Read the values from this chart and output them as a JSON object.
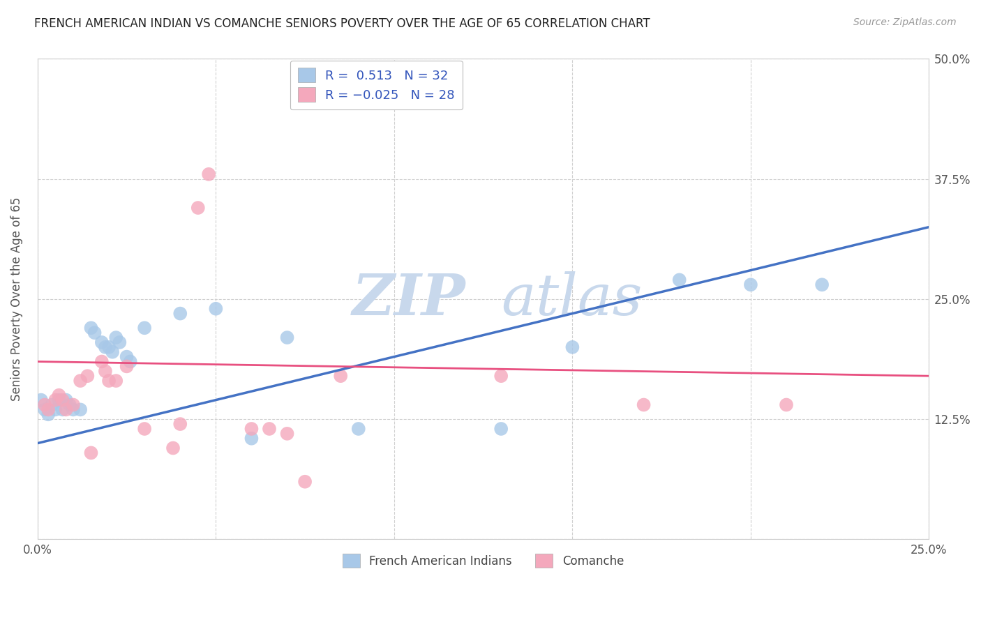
{
  "title": "FRENCH AMERICAN INDIAN VS COMANCHE SENIORS POVERTY OVER THE AGE OF 65 CORRELATION CHART",
  "source": "Source: ZipAtlas.com",
  "ylabel": "Seniors Poverty Over the Age of 65",
  "xlabel": "",
  "legend_label1": "French American Indians",
  "legend_label2": "Comanche",
  "R1": 0.513,
  "N1": 32,
  "R2": -0.025,
  "N2": 28,
  "color1": "#a8c8e8",
  "color2": "#f4a8bc",
  "line_color1": "#4472c4",
  "line_color2": "#e85080",
  "xlim": [
    0.0,
    0.25
  ],
  "ylim": [
    0.0,
    0.5
  ],
  "xticks": [
    0.0,
    0.05,
    0.1,
    0.15,
    0.2,
    0.25
  ],
  "yticks": [
    0.0,
    0.125,
    0.25,
    0.375,
    0.5
  ],
  "xtick_labels": [
    "0.0%",
    "",
    "",
    "",
    "",
    "25.0%"
  ],
  "ytick_labels_right": [
    "",
    "12.5%",
    "25.0%",
    "37.5%",
    "50.0%"
  ],
  "blue_points": [
    [
      0.001,
      0.145
    ],
    [
      0.002,
      0.135
    ],
    [
      0.003,
      0.13
    ],
    [
      0.004,
      0.14
    ],
    [
      0.005,
      0.135
    ],
    [
      0.006,
      0.145
    ],
    [
      0.007,
      0.135
    ],
    [
      0.008,
      0.145
    ],
    [
      0.009,
      0.14
    ],
    [
      0.01,
      0.135
    ],
    [
      0.012,
      0.135
    ],
    [
      0.015,
      0.22
    ],
    [
      0.016,
      0.215
    ],
    [
      0.018,
      0.205
    ],
    [
      0.019,
      0.2
    ],
    [
      0.02,
      0.2
    ],
    [
      0.021,
      0.195
    ],
    [
      0.022,
      0.21
    ],
    [
      0.023,
      0.205
    ],
    [
      0.025,
      0.19
    ],
    [
      0.026,
      0.185
    ],
    [
      0.03,
      0.22
    ],
    [
      0.04,
      0.235
    ],
    [
      0.05,
      0.24
    ],
    [
      0.06,
      0.105
    ],
    [
      0.07,
      0.21
    ],
    [
      0.09,
      0.115
    ],
    [
      0.13,
      0.115
    ],
    [
      0.15,
      0.2
    ],
    [
      0.18,
      0.27
    ],
    [
      0.2,
      0.265
    ],
    [
      0.22,
      0.265
    ]
  ],
  "pink_points": [
    [
      0.002,
      0.14
    ],
    [
      0.003,
      0.135
    ],
    [
      0.005,
      0.145
    ],
    [
      0.006,
      0.15
    ],
    [
      0.007,
      0.145
    ],
    [
      0.008,
      0.135
    ],
    [
      0.01,
      0.14
    ],
    [
      0.012,
      0.165
    ],
    [
      0.014,
      0.17
    ],
    [
      0.015,
      0.09
    ],
    [
      0.018,
      0.185
    ],
    [
      0.019,
      0.175
    ],
    [
      0.02,
      0.165
    ],
    [
      0.022,
      0.165
    ],
    [
      0.025,
      0.18
    ],
    [
      0.03,
      0.115
    ],
    [
      0.038,
      0.095
    ],
    [
      0.04,
      0.12
    ],
    [
      0.045,
      0.345
    ],
    [
      0.048,
      0.38
    ],
    [
      0.06,
      0.115
    ],
    [
      0.065,
      0.115
    ],
    [
      0.07,
      0.11
    ],
    [
      0.075,
      0.06
    ],
    [
      0.085,
      0.17
    ],
    [
      0.13,
      0.17
    ],
    [
      0.17,
      0.14
    ],
    [
      0.21,
      0.14
    ]
  ],
  "blue_line": [
    0.0,
    0.25
  ],
  "blue_line_y": [
    0.1,
    0.325
  ],
  "pink_line": [
    0.0,
    0.25
  ],
  "pink_line_y": [
    0.185,
    0.17
  ],
  "watermark1": "ZIP",
  "watermark2": "atlas",
  "watermark_color1": "#c8d8ec",
  "watermark_color2": "#c8d8ec",
  "background_color": "#ffffff",
  "grid_color": "#d0d0d0"
}
